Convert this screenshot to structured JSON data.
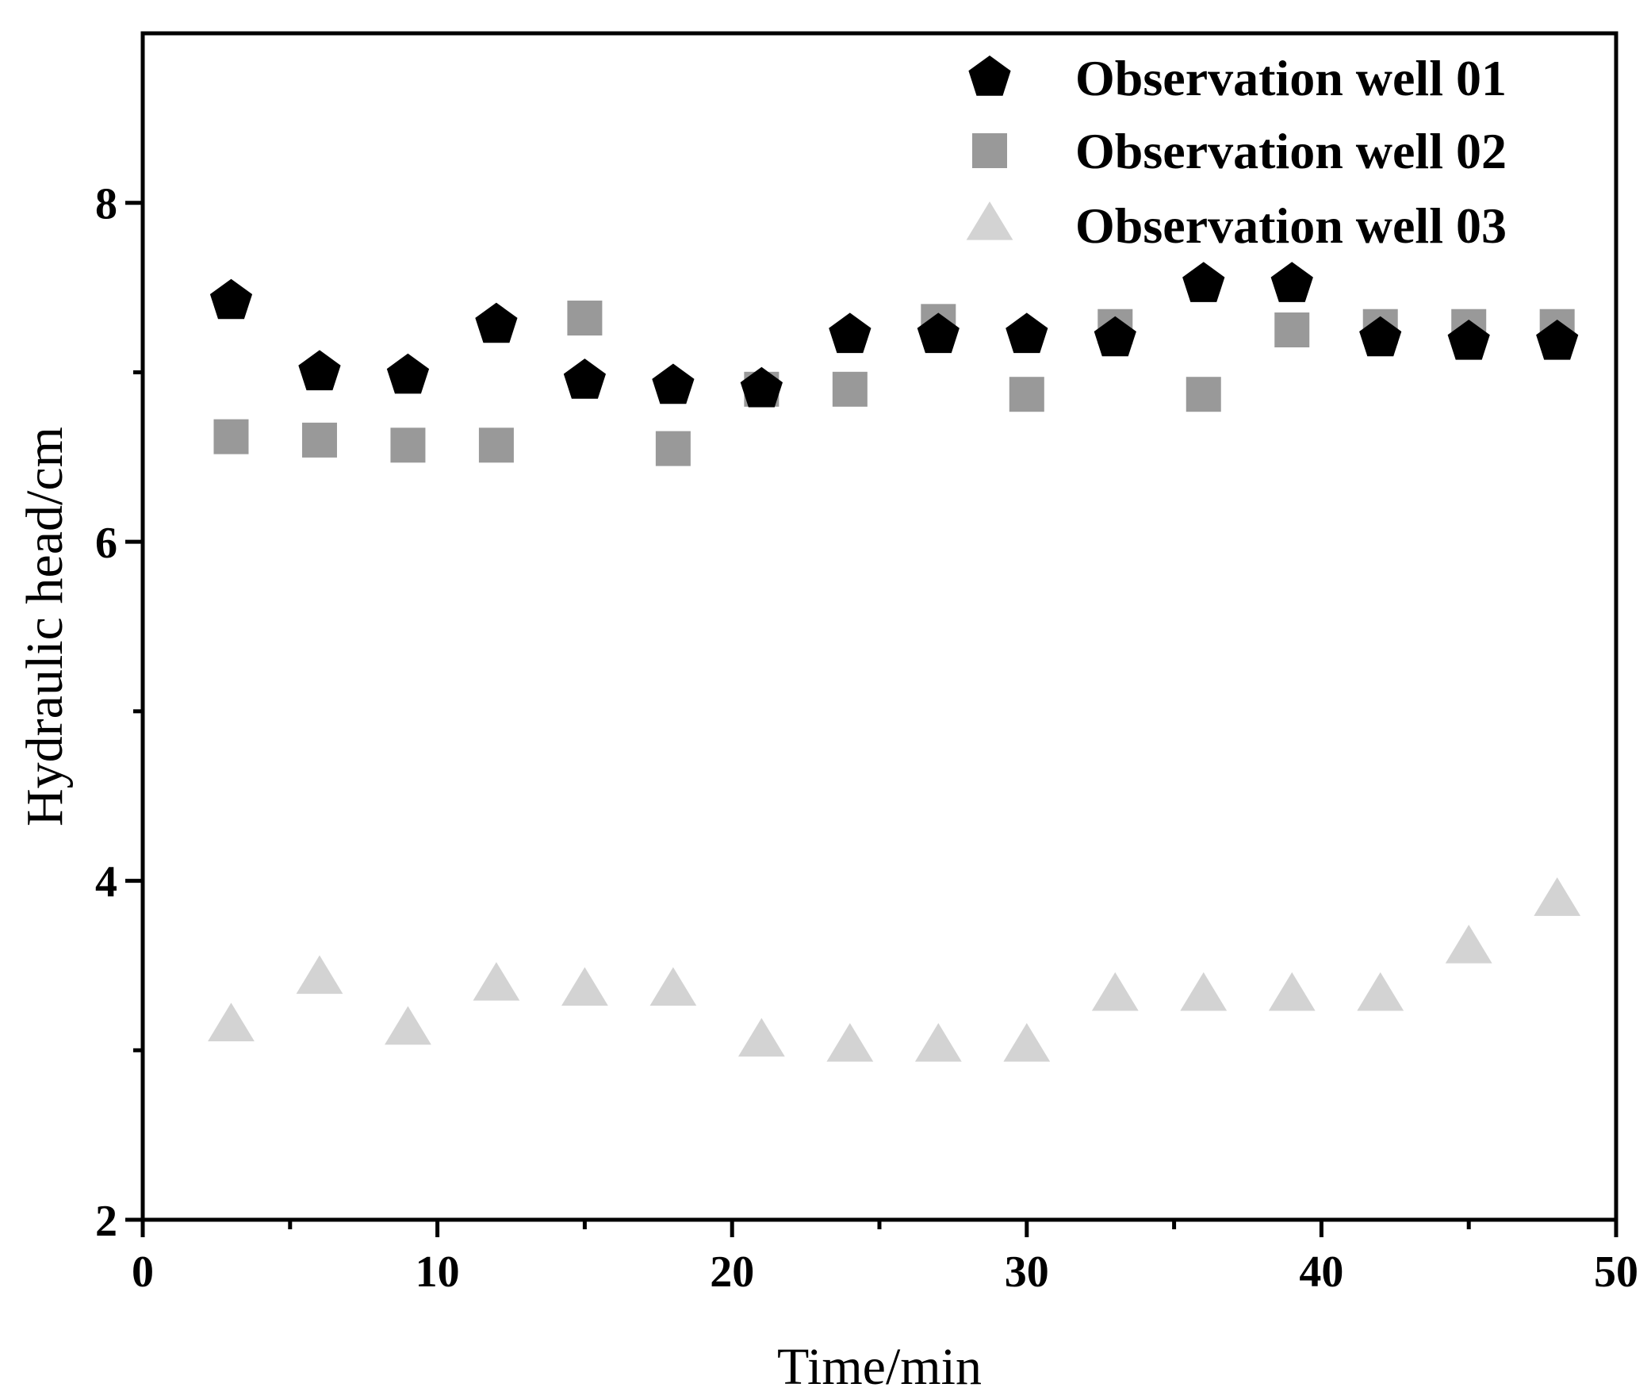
{
  "chart_data": {
    "type": "scatter",
    "title": "",
    "xlabel": "Time/min",
    "ylabel": "Hydraulic head/cm",
    "xlim": [
      0,
      50
    ],
    "ylim": [
      2,
      9
    ],
    "x_ticks": [
      0,
      10,
      20,
      30,
      40,
      50
    ],
    "x_tick_labels": [
      "0",
      "10",
      "20",
      "30",
      "40",
      "50"
    ],
    "x_minor_ticks": [
      5,
      15,
      25,
      35,
      45
    ],
    "y_ticks": [
      2,
      4,
      6,
      8
    ],
    "y_tick_labels": [
      "2",
      "4",
      "6",
      "8"
    ],
    "y_minor_ticks": [
      3,
      5,
      7
    ],
    "grid": false,
    "legend_position": "top-right",
    "series": [
      {
        "name": "Observation well 01",
        "marker": "pentagon",
        "color": "#000000",
        "x": [
          3,
          6,
          9,
          12,
          15,
          18,
          21,
          24,
          27,
          30,
          33,
          36,
          39,
          42,
          45,
          48
        ],
        "y": [
          7.42,
          7.0,
          6.98,
          7.28,
          6.95,
          6.92,
          6.9,
          7.22,
          7.22,
          7.22,
          7.2,
          7.52,
          7.52,
          7.2,
          7.18,
          7.18
        ]
      },
      {
        "name": "Observation well 02",
        "marker": "square",
        "color": "#999999",
        "x": [
          3,
          6,
          9,
          12,
          15,
          18,
          21,
          24,
          27,
          30,
          33,
          36,
          39,
          42,
          45,
          48
        ],
        "y": [
          6.62,
          6.6,
          6.57,
          6.57,
          7.32,
          6.55,
          6.9,
          6.9,
          7.3,
          6.87,
          7.27,
          6.87,
          7.25,
          7.27,
          7.27,
          7.27
        ]
      },
      {
        "name": "Observation well 03",
        "marker": "triangle",
        "color": "#d3d3d3",
        "x": [
          3,
          6,
          9,
          12,
          15,
          18,
          21,
          24,
          27,
          30,
          33,
          36,
          39,
          42,
          45,
          48
        ],
        "y": [
          3.14,
          3.42,
          3.12,
          3.38,
          3.35,
          3.35,
          3.05,
          3.02,
          3.02,
          3.02,
          3.32,
          3.32,
          3.32,
          3.32,
          3.6,
          3.88
        ]
      }
    ]
  }
}
